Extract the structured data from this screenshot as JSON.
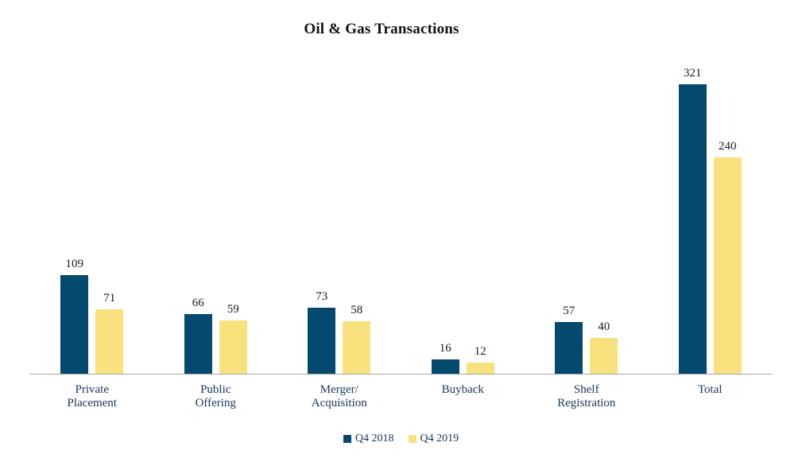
{
  "chart_data": {
    "type": "bar",
    "title": "Oil & Gas Transactions",
    "categories": [
      "Private\nPlacement",
      "Public\nOffering",
      "Merger/\nAcquisition",
      "Buyback",
      "Shelf\nRegistration",
      "Total"
    ],
    "series": [
      {
        "name": "Q4 2018",
        "color": "#04496E",
        "values": [
          109,
          66,
          73,
          16,
          57,
          321
        ]
      },
      {
        "name": "Q4 2019",
        "color": "#F9E17D",
        "values": [
          71,
          59,
          58,
          12,
          40,
          240
        ]
      }
    ],
    "value_labels": true,
    "grid": false,
    "legend_position": "bottom",
    "xlabel": "",
    "ylabel": "",
    "ylim": [
      0,
      350
    ],
    "colors": {
      "axis": "#A6A6A6",
      "title_text": "#111111",
      "value_text": "#1A1A1A",
      "category_text": "#17365D",
      "legend_text": "#17365D",
      "background": "#FFFFFF"
    }
  }
}
